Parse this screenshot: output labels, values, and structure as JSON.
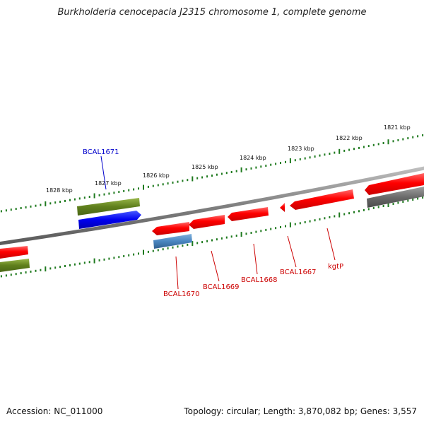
{
  "title": "Burkholderia cenocepacia J2315 chromosome 1, complete genome",
  "footer": {
    "accession": "Accession: NC_011000",
    "summary": "Topology: circular; Length: 3,870,082 bp; Genes: 3,557"
  },
  "colors": {
    "backbone": "#8a8a8a",
    "tick": "#1f7a1f",
    "gene_forward_red": "#ff1a1a",
    "gene_blue": "#0000ee",
    "gene_olive": "#6b8e23",
    "gene_steelblue": "#4a86c0",
    "gene_gray": "#707070",
    "label_red": "#cc0000",
    "label_blue": "#0000cc"
  },
  "scale_labels": [
    {
      "text": "1828 kbp"
    },
    {
      "text": "1827 kbp"
    },
    {
      "text": "1826 kbp"
    },
    {
      "text": "1825 kbp"
    },
    {
      "text": "1824 kbp"
    },
    {
      "text": "1823 kbp"
    },
    {
      "text": "1822 kbp"
    },
    {
      "text": "1821 kbp"
    }
  ],
  "gene_labels": [
    {
      "text": "BCAL1671",
      "color": "blue"
    },
    {
      "text": "BCAL1670",
      "color": "red"
    },
    {
      "text": "BCAL1669",
      "color": "red"
    },
    {
      "text": "BCAL1668",
      "color": "red"
    },
    {
      "text": "BCAL1667",
      "color": "red"
    },
    {
      "text": "kgtP",
      "color": "red"
    }
  ]
}
